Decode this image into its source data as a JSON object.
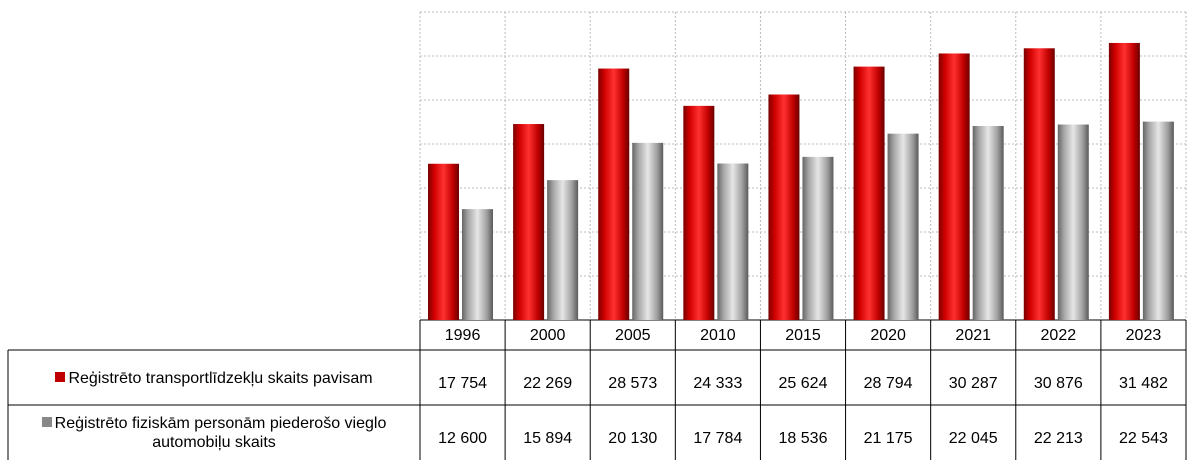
{
  "chart_data": {
    "type": "bar",
    "categories": [
      "1996",
      "2000",
      "2005",
      "2010",
      "2015",
      "2020",
      "2021",
      "2022",
      "2023"
    ],
    "series": [
      {
        "name": "Reģistrēto transportlīdzekļu skaits pavisam",
        "color": "#c00000",
        "values": [
          17754,
          22269,
          28573,
          24333,
          25624,
          28794,
          30287,
          30876,
          31482
        ],
        "value_labels": [
          "17 754",
          "22 269",
          "28 573",
          "24 333",
          "25 624",
          "28 794",
          "30 287",
          "30 876",
          "31 482"
        ]
      },
      {
        "name": "Reģistrēto fiziskām personām piederošo vieglo automobiļu skaits",
        "color": "#a6a6a6",
        "values": [
          12600,
          15894,
          20130,
          17784,
          18536,
          21175,
          22045,
          22213,
          22543
        ],
        "value_labels": [
          "12 600",
          "15 894",
          "20 130",
          "17 784",
          "18 536",
          "21 175",
          "22 045",
          "22 213",
          "22 543"
        ]
      }
    ],
    "ylim": [
      0,
      35000
    ],
    "yticks": [
      0,
      5000,
      10000,
      15000,
      20000,
      25000,
      30000,
      35000
    ],
    "grid": true
  }
}
